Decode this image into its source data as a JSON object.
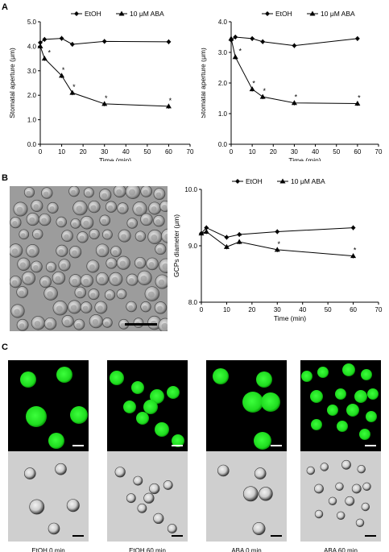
{
  "panels": {
    "a": "A",
    "b": "B",
    "c": "C"
  },
  "legend": {
    "etoh": "EtOH",
    "aba": "10 μM ABA"
  },
  "chart_data": [
    {
      "id": "a-left",
      "type": "line",
      "xlabel": "Time (min)",
      "ylabel": "Stomatal aperture (μm)",
      "xlim": [
        0,
        70
      ],
      "ylim": [
        0,
        5
      ],
      "x_ticks": [
        "0",
        "10",
        "20",
        "30",
        "40",
        "50",
        "60",
        "70"
      ],
      "y_ticks": [
        "0.0",
        "1.0",
        "2.0",
        "3.0",
        "4.0",
        "5.0"
      ],
      "series": [
        {
          "name": "EtOH",
          "marker": "diamond",
          "x": [
            0,
            2,
            10,
            15,
            30,
            60
          ],
          "y": [
            4.15,
            4.28,
            4.32,
            4.08,
            4.2,
            4.18
          ]
        },
        {
          "name": "10 μM ABA",
          "marker": "triangle",
          "x": [
            0,
            2,
            10,
            15,
            30,
            60
          ],
          "y": [
            4.0,
            3.5,
            2.8,
            2.1,
            1.65,
            1.55
          ],
          "sig": [
            false,
            true,
            true,
            true,
            true,
            true
          ]
        }
      ],
      "annotation": "*"
    },
    {
      "id": "a-right",
      "type": "line",
      "xlabel": "Time (min)",
      "ylabel": "Stomatal aperture (μm)",
      "xlim": [
        0,
        70
      ],
      "ylim": [
        0,
        4
      ],
      "x_ticks": [
        "0",
        "10",
        "20",
        "30",
        "40",
        "50",
        "60",
        "70"
      ],
      "y_ticks": [
        "0.0",
        "1.0",
        "2.0",
        "3.0",
        "4.0"
      ],
      "series": [
        {
          "name": "EtOH",
          "marker": "diamond",
          "x": [
            0,
            2,
            10,
            15,
            30,
            60
          ],
          "y": [
            3.4,
            3.5,
            3.45,
            3.35,
            3.22,
            3.45
          ]
        },
        {
          "name": "10 μM ABA",
          "marker": "triangle",
          "x": [
            0,
            2,
            10,
            15,
            30,
            60
          ],
          "y": [
            3.45,
            2.85,
            1.8,
            1.55,
            1.35,
            1.33
          ],
          "sig": [
            false,
            true,
            true,
            true,
            true,
            true
          ]
        }
      ],
      "annotation": "*"
    },
    {
      "id": "b",
      "type": "line",
      "xlabel": "Time (min)",
      "ylabel": "GCPs diameter (μm)",
      "xlim": [
        0,
        70
      ],
      "ylim": [
        8.0,
        10.0
      ],
      "x_ticks": [
        "0",
        "10",
        "20",
        "30",
        "40",
        "50",
        "60",
        "70"
      ],
      "y_ticks": [
        "8.0",
        "9.0",
        "10.0"
      ],
      "series": [
        {
          "name": "EtOH",
          "marker": "diamond",
          "x": [
            0,
            2,
            10,
            15,
            30,
            60
          ],
          "y": [
            9.22,
            9.32,
            9.15,
            9.2,
            9.25,
            9.32
          ]
        },
        {
          "name": "10 μM ABA",
          "marker": "triangle",
          "x": [
            0,
            2,
            10,
            15,
            30,
            60
          ],
          "y": [
            9.22,
            9.25,
            8.98,
            9.07,
            8.93,
            8.82
          ],
          "sig": [
            false,
            false,
            false,
            true,
            true,
            true
          ]
        }
      ],
      "annotation": "*"
    }
  ],
  "micro_captions": [
    "EtOH 0 min",
    "EtOH 60 min",
    "ABA 0 min",
    "ABA 60 min"
  ]
}
